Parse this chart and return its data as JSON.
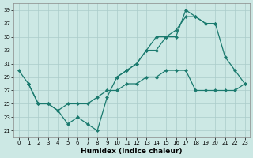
{
  "xlabel": "Humidex (Indice chaleur)",
  "line_color": "#1a7a6e",
  "bg_color": "#cce8e4",
  "grid_color": "#aaccca",
  "ylim": [
    20,
    40
  ],
  "yticks": [
    21,
    23,
    25,
    27,
    29,
    31,
    33,
    35,
    37,
    39
  ],
  "xlim": [
    -0.5,
    23.5
  ],
  "xticks": [
    0,
    1,
    2,
    3,
    4,
    5,
    6,
    7,
    8,
    9,
    10,
    11,
    12,
    13,
    14,
    15,
    16,
    17,
    18,
    19,
    20,
    21,
    22,
    23
  ],
  "line1_x": [
    0,
    1,
    2,
    3,
    4,
    5,
    6,
    7,
    8,
    9,
    10,
    11,
    12,
    13,
    14,
    15,
    16,
    17,
    18,
    19,
    20,
    21,
    22,
    23
  ],
  "line1_y": [
    30,
    28,
    25,
    25,
    24,
    22,
    23,
    22,
    21,
    26,
    29,
    30,
    31,
    33,
    33,
    35,
    35,
    39,
    38,
    37,
    37,
    32,
    30,
    28
  ],
  "line2_x": [
    1,
    2,
    3,
    4,
    5,
    6,
    7,
    8,
    9,
    10,
    11,
    12,
    13,
    14,
    15,
    16,
    17,
    18,
    19,
    20,
    21,
    22,
    23
  ],
  "line2_y": [
    28,
    25,
    25,
    24,
    25,
    25,
    25,
    26,
    27,
    27,
    28,
    28,
    29,
    29,
    30,
    30,
    30,
    27,
    27,
    27,
    27,
    27,
    28
  ],
  "line3_x": [
    10,
    11,
    12,
    13,
    14,
    15,
    16,
    17,
    18,
    19,
    20
  ],
  "line3_y": [
    29,
    30,
    31,
    33,
    35,
    35,
    36,
    38,
    38,
    37,
    37
  ]
}
